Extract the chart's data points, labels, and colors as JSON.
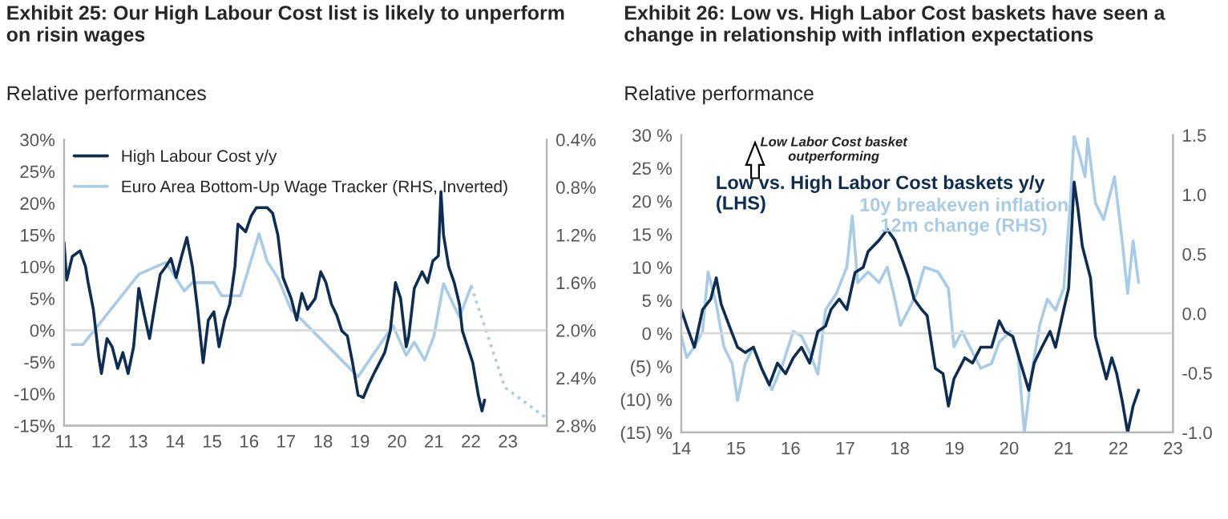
{
  "chart_data": [
    {
      "type": "line",
      "title": "Exhibit 25: Our High Labour Cost list is likely to unperform on risin wages",
      "subtitle": "Relative performances",
      "xlim": [
        2011,
        2024.05
      ],
      "xticks": [
        {
          "value": 2011,
          "label": "11"
        },
        {
          "value": 2012,
          "label": "12"
        },
        {
          "value": 2013,
          "label": "13"
        },
        {
          "value": 2014,
          "label": "14"
        },
        {
          "value": 2015,
          "label": "15"
        },
        {
          "value": 2016,
          "label": "16"
        },
        {
          "value": 2017,
          "label": "17"
        },
        {
          "value": 2018,
          "label": "18"
        },
        {
          "value": 2019,
          "label": "19"
        },
        {
          "value": 2020,
          "label": "20"
        },
        {
          "value": 2021,
          "label": "21"
        },
        {
          "value": 2022,
          "label": "22"
        },
        {
          "value": 2023,
          "label": "23"
        }
      ],
      "ylim": [
        -15,
        30
      ],
      "yticks": [
        {
          "value": -15,
          "label": "-15%"
        },
        {
          "value": -10,
          "label": "-10%"
        },
        {
          "value": -5,
          "label": "-5%"
        },
        {
          "value": 0,
          "label": "0%"
        },
        {
          "value": 5,
          "label": "5%"
        },
        {
          "value": 10,
          "label": "10%"
        },
        {
          "value": 15,
          "label": "15%"
        },
        {
          "value": 20,
          "label": "20%"
        },
        {
          "value": 25,
          "label": "25%"
        },
        {
          "value": 30,
          "label": "30%"
        }
      ],
      "y2lim": [
        2.8,
        0.4
      ],
      "y2ticks": [
        {
          "value": 2.8,
          "label": "2.8%"
        },
        {
          "value": 2.4,
          "label": "2.4%"
        },
        {
          "value": 2.0,
          "label": "2.0%"
        },
        {
          "value": 1.6,
          "label": "1.6%"
        },
        {
          "value": 1.2,
          "label": "1.2%"
        },
        {
          "value": 0.8,
          "label": "0.8%"
        },
        {
          "value": 0.4,
          "label": "0.4%"
        }
      ],
      "legend": "top left",
      "grid": false,
      "ref_lines": [
        {
          "axis": "y",
          "value": 0,
          "color": "#d9d9d9"
        }
      ],
      "series": [
        {
          "name": "High Labour Cost y/y",
          "color": "#0d2d53",
          "x": [
            2011.0,
            2011.07,
            2011.22,
            2011.43,
            2011.58,
            2011.65,
            2011.79,
            2011.94,
            2012.01,
            2012.16,
            2012.3,
            2012.45,
            2012.59,
            2012.73,
            2012.88,
            2013.02,
            2013.17,
            2013.31,
            2013.46,
            2013.6,
            2013.75,
            2013.89,
            2014.03,
            2014.18,
            2014.32,
            2014.47,
            2014.61,
            2014.76,
            2014.9,
            2015.05,
            2015.19,
            2015.34,
            2015.48,
            2015.62,
            2015.7,
            2015.91,
            2016.06,
            2016.2,
            2016.49,
            2016.64,
            2016.78,
            2016.92,
            2017.14,
            2017.29,
            2017.43,
            2017.58,
            2017.79,
            2017.94,
            2018.08,
            2018.23,
            2018.37,
            2018.51,
            2018.66,
            2018.8,
            2018.95,
            2019.09,
            2019.24,
            2019.38,
            2019.53,
            2019.67,
            2019.82,
            2019.96,
            2020.1,
            2020.25,
            2020.32,
            2020.47,
            2020.68,
            2020.83,
            2020.97,
            2021.12,
            2021.19,
            2021.26,
            2021.4,
            2021.55,
            2021.69,
            2021.77,
            2021.91,
            2022.05,
            2022.2,
            2022.3,
            2022.37
          ],
          "values": [
            13.8,
            7.9,
            11.6,
            12.5,
            10,
            7.5,
            3.3,
            -4.3,
            -6.8,
            -1.3,
            -2.6,
            -6,
            -3.5,
            -6.8,
            -2.6,
            6.6,
            2.4,
            -1.3,
            4.1,
            8.8,
            10,
            11.3,
            8.3,
            11.7,
            14.6,
            10,
            3.3,
            -5.1,
            1.6,
            2.9,
            -2.6,
            1.6,
            4.1,
            10,
            16.7,
            15.5,
            18,
            19.3,
            19.3,
            18.4,
            15,
            8.3,
            5,
            1.6,
            5.8,
            3.3,
            5,
            9.2,
            7.5,
            4.1,
            2.4,
            -0.1,
            -0.9,
            -5.1,
            -10.2,
            -10.6,
            -8.5,
            -6.8,
            -5.1,
            -3.5,
            -0.1,
            7.5,
            5,
            -2.6,
            -0.9,
            6.6,
            9.2,
            7.5,
            10.9,
            11.7,
            21.8,
            15,
            10,
            7.5,
            4.1,
            -0.1,
            -2.6,
            -5.1,
            -10.2,
            -12.7,
            -11
          ]
        },
        {
          "name": "Euro Area Bottom-Up Wage Tracker (RHS, Inverted)",
          "color": "#a8cce8",
          "axis": "y2",
          "x": [
            2011.22,
            2011.51,
            2013.02,
            2013.75,
            2014.25,
            2014.47,
            2015.05,
            2015.26,
            2015.77,
            2016.27,
            2016.49,
            2016.78,
            2017.14,
            2017.29,
            2018.95,
            2019.89,
            2020.25,
            2020.47,
            2020.75,
            2021.0,
            2021.26,
            2021.69,
            2022.01
          ],
          "values": [
            2.12,
            2.12,
            1.53,
            1.43,
            1.67,
            1.6,
            1.6,
            1.71,
            1.71,
            1.19,
            1.42,
            1.56,
            1.83,
            1.87,
            2.39,
            1.96,
            2.21,
            2.1,
            2.25,
            2.05,
            1.61,
            1.89,
            1.63
          ]
        },
        {
          "color": "#a8cce8",
          "axis": "y2",
          "line_style": "dotted",
          "x": [
            2022.01,
            2022.92,
            2024.01
          ],
          "values": [
            1.63,
            2.48,
            2.73
          ]
        }
      ]
    },
    {
      "type": "line",
      "title": "Exhibit 26: Low vs. High Labor Cost baskets have seen a change in relationship with inflation expectations",
      "subtitle": "Relative performance",
      "xlim": [
        2014,
        2023
      ],
      "xticks": [
        {
          "value": 2014,
          "label": "14"
        },
        {
          "value": 2015,
          "label": "15"
        },
        {
          "value": 2016,
          "label": "16"
        },
        {
          "value": 2017,
          "label": "17"
        },
        {
          "value": 2018,
          "label": "18"
        },
        {
          "value": 2019,
          "label": "19"
        },
        {
          "value": 2020,
          "label": "20"
        },
        {
          "value": 2021,
          "label": "21"
        },
        {
          "value": 2022,
          "label": "22"
        },
        {
          "value": 2023,
          "label": "23"
        }
      ],
      "ylim": [
        -15,
        30
      ],
      "yticks": [
        {
          "value": -15,
          "label": "(15) %"
        },
        {
          "value": -10,
          "label": "(10) %"
        },
        {
          "value": -5,
          "label": "(5) %"
        },
        {
          "value": 0,
          "label": "0 %"
        },
        {
          "value": 5,
          "label": "5 %"
        },
        {
          "value": 10,
          "label": "10 %"
        },
        {
          "value": 15,
          "label": "15 %"
        },
        {
          "value": 20,
          "label": "20 %"
        },
        {
          "value": 25,
          "label": "25 %"
        },
        {
          "value": 30,
          "label": "30 %"
        }
      ],
      "y2lim": [
        -1.0,
        1.5
      ],
      "y2ticks": [
        {
          "value": -1.0,
          "label": "-1.0"
        },
        {
          "value": -0.5,
          "label": "-0.5"
        },
        {
          "value": 0.0,
          "label": "0.0"
        },
        {
          "value": 0.5,
          "label": "0.5"
        },
        {
          "value": 1.0,
          "label": "1.0"
        },
        {
          "value": 1.5,
          "label": "1.5"
        }
      ],
      "legend": false,
      "grid": false,
      "ref_lines": [
        {
          "axis": "y",
          "value": 0,
          "color": "#d9d9d9"
        }
      ],
      "annotations": [
        "Low Labor Cost basket outperforming"
      ],
      "series": [
        {
          "name": "Low vs. High Labor Cost baskets y/y (LHS)",
          "color": "#0d2d53",
          "x": [
            2014.0,
            2014.1,
            2014.24,
            2014.39,
            2014.54,
            2014.64,
            2014.73,
            2014.88,
            2015.03,
            2015.17,
            2015.32,
            2015.47,
            2015.61,
            2015.76,
            2015.91,
            2016.05,
            2016.2,
            2016.35,
            2016.5,
            2016.64,
            2016.74,
            2016.89,
            2017.03,
            2017.18,
            2017.33,
            2017.42,
            2017.62,
            2017.77,
            2017.91,
            2018.06,
            2018.16,
            2018.26,
            2018.4,
            2018.5,
            2018.65,
            2018.79,
            2018.89,
            2018.99,
            2019.19,
            2019.33,
            2019.48,
            2019.68,
            2019.82,
            2019.92,
            2020.07,
            2020.21,
            2020.36,
            2020.46,
            2020.6,
            2020.75,
            2020.85,
            2021.0,
            2021.09,
            2021.19,
            2021.26,
            2021.34,
            2021.49,
            2021.58,
            2021.68,
            2021.78,
            2021.88,
            2021.97,
            2022.07,
            2022.17,
            2022.27,
            2022.37
          ],
          "values": [
            3.6,
            1.1,
            -2.1,
            3.6,
            5.2,
            8.4,
            4.4,
            1.1,
            -2.1,
            -2.9,
            -2.1,
            -5.3,
            -7.8,
            -4.5,
            -6.1,
            -3.7,
            -2.1,
            -4.5,
            0.3,
            1.1,
            3.6,
            5.2,
            3.6,
            9.2,
            10,
            12.4,
            14.1,
            15.7,
            14.1,
            10.8,
            8.4,
            5.2,
            3.6,
            2.7,
            -5.3,
            -6.1,
            -11,
            -6.9,
            -3.7,
            -4.5,
            -2.1,
            -2.1,
            1.9,
            0.3,
            -0.5,
            -4.5,
            -8.6,
            -4.5,
            -2.1,
            0.3,
            -2.1,
            3.6,
            6.8,
            22.9,
            18.9,
            13.2,
            8.4,
            -0.5,
            -3.7,
            -6.9,
            -3.7,
            -6.1,
            -10.2,
            -15,
            -11,
            -8.6
          ]
        },
        {
          "name": "10y breakeven inflation 12m change (RHS)",
          "color": "#a8cce8",
          "axis": "y2",
          "x": [
            2014.0,
            2014.1,
            2014.24,
            2014.39,
            2014.49,
            2014.64,
            2014.78,
            2014.93,
            2015.03,
            2015.17,
            2015.32,
            2015.47,
            2015.66,
            2015.86,
            2016.05,
            2016.2,
            2016.35,
            2016.5,
            2016.64,
            2016.84,
            2017.03,
            2017.13,
            2017.23,
            2017.42,
            2017.62,
            2017.77,
            2017.91,
            2018.01,
            2018.16,
            2018.31,
            2018.45,
            2018.7,
            2018.89,
            2018.99,
            2019.14,
            2019.28,
            2019.48,
            2019.68,
            2019.82,
            2020.02,
            2020.16,
            2020.28,
            2020.41,
            2020.56,
            2020.7,
            2020.85,
            2021.0,
            2021.12,
            2021.19,
            2021.29,
            2021.39,
            2021.44,
            2021.58,
            2021.73,
            2021.93,
            2022.07,
            2022.17,
            2022.27,
            2022.37
          ],
          "values": [
            -0.19,
            -0.37,
            -0.28,
            -0.15,
            0.35,
            0.08,
            -0.28,
            -0.42,
            -0.73,
            -0.42,
            -0.28,
            -0.46,
            -0.64,
            -0.42,
            -0.15,
            -0.19,
            -0.33,
            -0.51,
            0.03,
            0.17,
            0.39,
            0.82,
            0.26,
            0.35,
            0.26,
            0.39,
            0.12,
            -0.1,
            0.03,
            0.17,
            0.39,
            0.35,
            0.21,
            -0.28,
            -0.15,
            -0.28,
            -0.46,
            -0.42,
            -0.24,
            -0.15,
            -0.33,
            -1.0,
            -0.51,
            -0.1,
            0.12,
            0.03,
            0.21,
            0.93,
            1.49,
            1.33,
            1.15,
            1.47,
            0.93,
            0.79,
            1.15,
            0.61,
            0.17,
            0.61,
            0.26
          ]
        }
      ]
    }
  ]
}
